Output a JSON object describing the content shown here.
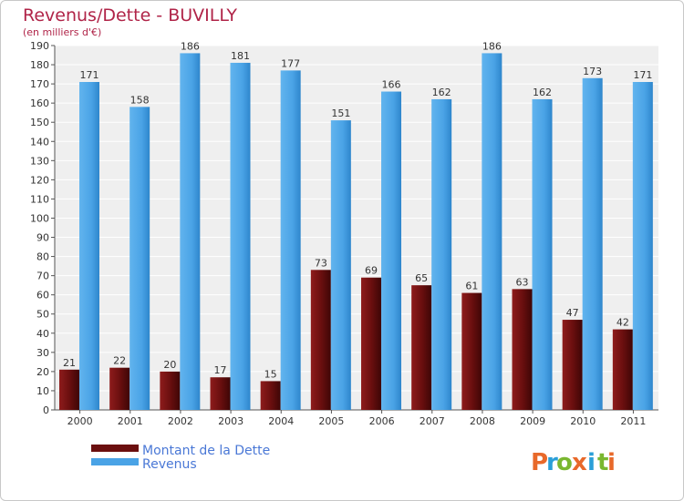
{
  "header": {
    "title": "Revenus/Dette - BUVILLY",
    "subtitle": "(en milliers d'€)"
  },
  "legend": {
    "items": [
      {
        "label": "Montant de la Dette",
        "color": "#6b0f0f"
      },
      {
        "label": "Revenus",
        "color": "#4aa3e6"
      }
    ]
  },
  "logo": {
    "letters": [
      "P",
      "r",
      "o",
      "x",
      "i",
      "t",
      "i"
    ],
    "colors": [
      "#e8692a",
      "#2a9fd8",
      "#7ab730",
      "#e8692a",
      "#2a9fd8",
      "#7ab730",
      "#e8692a"
    ]
  },
  "chart_data": {
    "type": "bar",
    "title": "Revenus/Dette - BUVILLY",
    "subtitle": "(en milliers d'€)",
    "categories": [
      "2000",
      "2001",
      "2002",
      "2003",
      "2004",
      "2005",
      "2006",
      "2007",
      "2008",
      "2009",
      "2010",
      "2011"
    ],
    "series": [
      {
        "name": "Montant de la Dette",
        "color": "#6b0f0f",
        "values": [
          21,
          22,
          20,
          17,
          15,
          73,
          69,
          65,
          61,
          63,
          47,
          42
        ]
      },
      {
        "name": "Revenus",
        "color": "#4aa3e6",
        "values": [
          171,
          158,
          186,
          181,
          177,
          151,
          166,
          162,
          186,
          162,
          173,
          171
        ]
      }
    ],
    "ylim": [
      0,
      190
    ],
    "ytick_step": 10,
    "grid": true,
    "legend_position": "bottom-left"
  }
}
